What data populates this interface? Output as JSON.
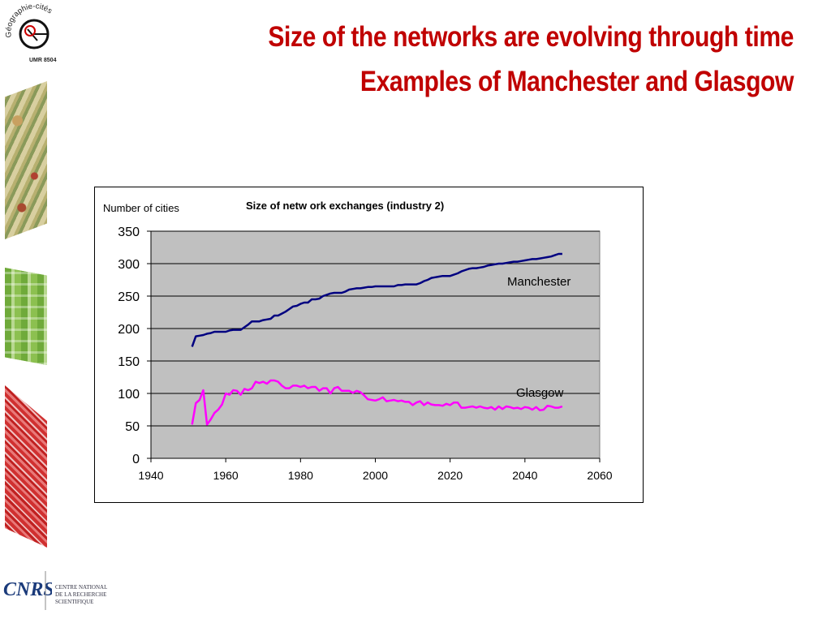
{
  "slide": {
    "title_line1": "Size of the networks are evolving through time",
    "title_line2": "Examples of Manchester and Glasgow"
  },
  "sidebar": {
    "logo_text": "Géographie-cités",
    "logo_subtext": "UMR 8504",
    "cnrs_acronym": "CNRS",
    "cnrs_name_line1": "CENTRE NATIONAL",
    "cnrs_name_line2": "DE LA RECHERCHE",
    "cnrs_name_line3": "SCIENTIFIQUE"
  },
  "colors": {
    "title": "#c00000",
    "plot_bg": "#c0c0c0",
    "manchester": "#000080",
    "glasgow": "#ff00ff"
  },
  "chart_data": {
    "type": "line",
    "title": "Size of netw ork exchanges (industry 2)",
    "ylabel": "Number of cities",
    "xlabel": "",
    "xlim": [
      1940,
      2060
    ],
    "ylim": [
      0,
      350
    ],
    "x_ticks": [
      1940,
      1960,
      1980,
      2000,
      2020,
      2040,
      2060
    ],
    "y_ticks": [
      0,
      50,
      100,
      150,
      200,
      250,
      300,
      350
    ],
    "grid": "horizontal",
    "legend": "inline labels",
    "series": [
      {
        "name": "Manchester",
        "x": [
          1951,
          1952,
          1953,
          1954,
          1955,
          1956,
          1957,
          1958,
          1959,
          1960,
          1961,
          1962,
          1963,
          1964,
          1965,
          1966,
          1967,
          1968,
          1969,
          1970,
          1971,
          1972,
          1973,
          1974,
          1975,
          1976,
          1977,
          1978,
          1979,
          1980,
          1981,
          1982,
          1983,
          1984,
          1985,
          1986,
          1987,
          1988,
          1989,
          1990,
          1991,
          1992,
          1993,
          1994,
          1995,
          1996,
          1997,
          1998,
          1999,
          2000,
          2001,
          2002,
          2003,
          2004,
          2005,
          2006,
          2007,
          2008,
          2009,
          2010,
          2011,
          2012,
          2013,
          2014,
          2015,
          2016,
          2017,
          2018,
          2019,
          2020,
          2021,
          2022,
          2023,
          2024,
          2025,
          2026,
          2027,
          2028,
          2029,
          2030,
          2031,
          2032,
          2033,
          2034,
          2035,
          2036,
          2037,
          2038,
          2039,
          2040,
          2041,
          2042,
          2043,
          2044,
          2045,
          2046,
          2047,
          2048,
          2049,
          2050
        ],
        "values": [
          172,
          188,
          189,
          190,
          192,
          193,
          195,
          195,
          195,
          195,
          197,
          198,
          198,
          198,
          202,
          206,
          211,
          211,
          211,
          213,
          214,
          215,
          220,
          220,
          223,
          226,
          230,
          234,
          235,
          238,
          240,
          240,
          245,
          245,
          246,
          250,
          252,
          254,
          255,
          255,
          255,
          257,
          260,
          261,
          262,
          262,
          263,
          264,
          264,
          265,
          265,
          265,
          265,
          265,
          265,
          267,
          267,
          268,
          268,
          268,
          268,
          270,
          273,
          275,
          278,
          279,
          280,
          281,
          281,
          281,
          283,
          285,
          288,
          290,
          292,
          293,
          293,
          294,
          295,
          297,
          298,
          299,
          300,
          300,
          301,
          302,
          303,
          303,
          304,
          305,
          306,
          307,
          307,
          308,
          309,
          310,
          311,
          313,
          315,
          315
        ]
      },
      {
        "name": "Glasgow",
        "x": [
          1951,
          1952,
          1953,
          1954,
          1955,
          1956,
          1957,
          1958,
          1959,
          1960,
          1961,
          1962,
          1963,
          1964,
          1965,
          1966,
          1967,
          1968,
          1969,
          1970,
          1971,
          1972,
          1973,
          1974,
          1975,
          1976,
          1977,
          1978,
          1979,
          1980,
          1981,
          1982,
          1983,
          1984,
          1985,
          1986,
          1987,
          1988,
          1989,
          1990,
          1991,
          1992,
          1993,
          1994,
          1995,
          1996,
          1997,
          1998,
          1999,
          2000,
          2001,
          2002,
          2003,
          2004,
          2005,
          2006,
          2007,
          2008,
          2009,
          2010,
          2011,
          2012,
          2013,
          2014,
          2015,
          2016,
          2017,
          2018,
          2019,
          2020,
          2021,
          2022,
          2023,
          2024,
          2025,
          2026,
          2027,
          2028,
          2029,
          2030,
          2031,
          2032,
          2033,
          2034,
          2035,
          2036,
          2037,
          2038,
          2039,
          2040,
          2041,
          2042,
          2043,
          2044,
          2045,
          2046,
          2047,
          2048,
          2049,
          2050
        ],
        "values": [
          52,
          85,
          90,
          105,
          52,
          60,
          70,
          75,
          83,
          100,
          98,
          105,
          104,
          98,
          107,
          105,
          108,
          118,
          116,
          118,
          115,
          120,
          120,
          118,
          112,
          108,
          108,
          112,
          112,
          110,
          112,
          108,
          110,
          110,
          104,
          108,
          108,
          100,
          108,
          110,
          104,
          104,
          104,
          101,
          104,
          102,
          97,
          91,
          90,
          89,
          91,
          94,
          88,
          89,
          90,
          88,
          89,
          87,
          87,
          82,
          86,
          88,
          82,
          86,
          83,
          82,
          82,
          81,
          84,
          82,
          86,
          86,
          78,
          78,
          79,
          80,
          78,
          80,
          78,
          77,
          79,
          75,
          80,
          76,
          80,
          79,
          77,
          78,
          76,
          79,
          78,
          75,
          79,
          74,
          75,
          81,
          80,
          78,
          78,
          80
        ]
      }
    ]
  }
}
